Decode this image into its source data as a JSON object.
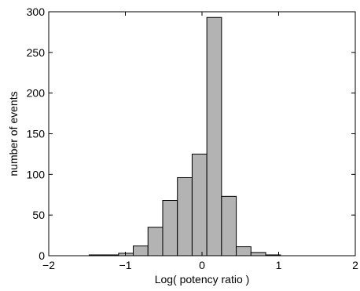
{
  "chart_data": {
    "type": "bar",
    "subtype": "histogram",
    "title": "",
    "xlabel": "Log( potency ratio )",
    "ylabel": "number of events",
    "xlim": [
      -2,
      2
    ],
    "ylim": [
      0,
      300
    ],
    "xticks": [
      -2,
      -1,
      0,
      1,
      2
    ],
    "xtick_labels": [
      "−2",
      "−1",
      "0",
      "1",
      "2"
    ],
    "yticks": [
      0,
      50,
      100,
      150,
      200,
      250,
      300
    ],
    "ytick_labels": [
      "0",
      "50",
      "100",
      "150",
      "200",
      "250",
      "300"
    ],
    "bin_edges": [
      -1.665,
      -1.473,
      -1.281,
      -1.089,
      -0.897,
      -0.705,
      -0.513,
      -0.321,
      -0.129,
      0.063,
      0.255,
      0.447,
      0.639,
      0.831,
      1.023,
      1.215,
      1.407,
      1.599
    ],
    "values": [
      0,
      1,
      1,
      3,
      12,
      35,
      68,
      96,
      125,
      293,
      73,
      11,
      4,
      1,
      0,
      0,
      0
    ],
    "bar_color": "#b3b3b3",
    "edge_color": "#000000",
    "grid": false,
    "legend": "none"
  }
}
